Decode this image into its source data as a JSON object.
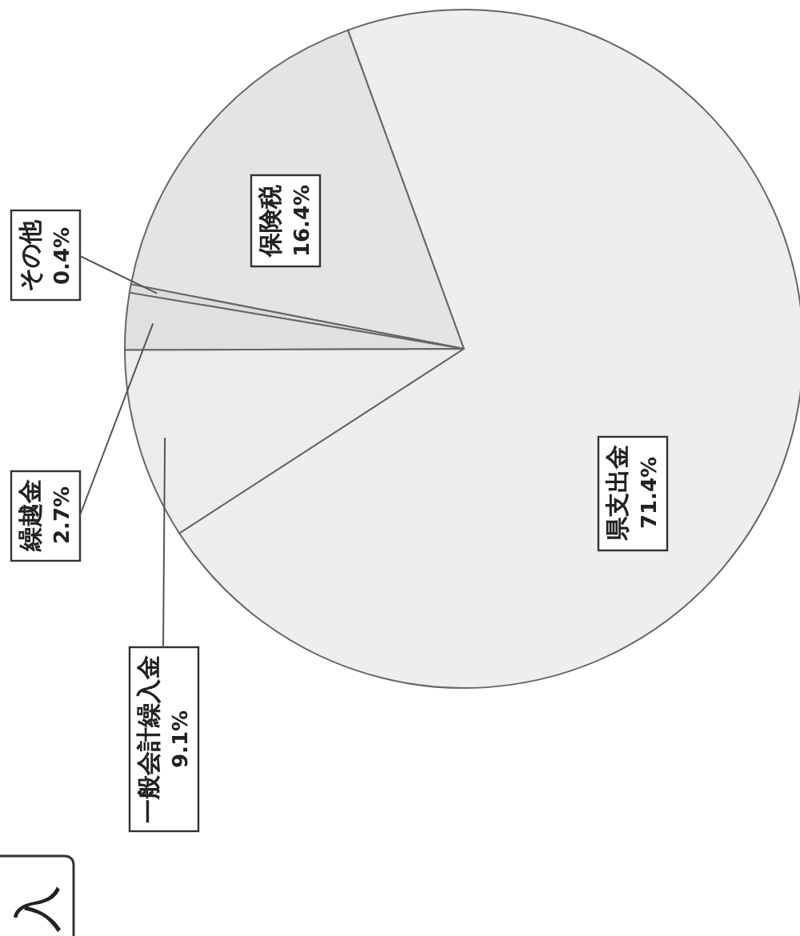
{
  "chart_data": {
    "type": "pie",
    "title": "入",
    "categories": [
      "保険税",
      "その他",
      "繰越金",
      "一般会計繰入金",
      "県支出金"
    ],
    "values": [
      16.4,
      0.4,
      2.7,
      9.1,
      71.4
    ],
    "value_labels": [
      "16.4%",
      "0.4%",
      "2.7%",
      "9.1%",
      "71.4%"
    ],
    "colors": [
      "#e4e4e4",
      "#dcdcdc",
      "#e0e0e0",
      "#ececec",
      "#eeeeee"
    ]
  }
}
